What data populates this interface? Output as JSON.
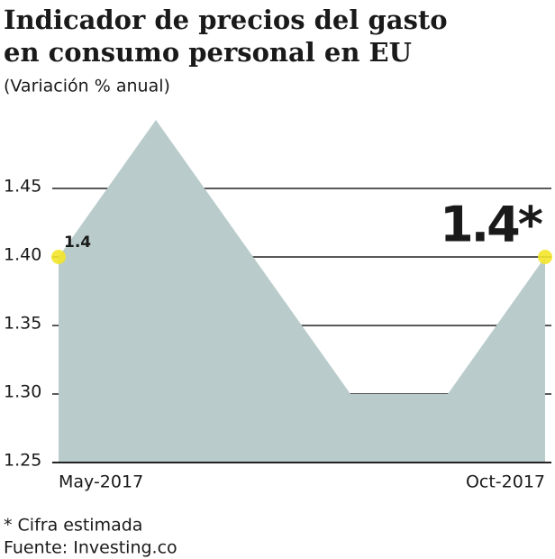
{
  "chart_data": {
    "type": "area",
    "title": "Indicador de precios  del gasto",
    "title_line2": "en consumo personal en EU",
    "subtitle": "(Variación % anual)",
    "categories": [
      "May-2017",
      null,
      null,
      null,
      null,
      "Oct-2017"
    ],
    "values": [
      1.4,
      1.5,
      1.4,
      1.3,
      1.3,
      1.4
    ],
    "value_labels": [
      "1.4",
      null,
      null,
      null,
      null,
      "1.4*"
    ],
    "color": "#b9cccb",
    "marker_color": "#f3e52b",
    "ylim": [
      1.25,
      1.5
    ],
    "yticks": [
      1.25,
      {
        "value": 1.3,
        "label": "1.30"
      },
      1.35,
      {
        "value": 1.4,
        "label": "1.40"
      },
      1.45
    ],
    "grid": true,
    "footnote": "* Cifra estimada",
    "source": "Fuente: Investing.co"
  }
}
